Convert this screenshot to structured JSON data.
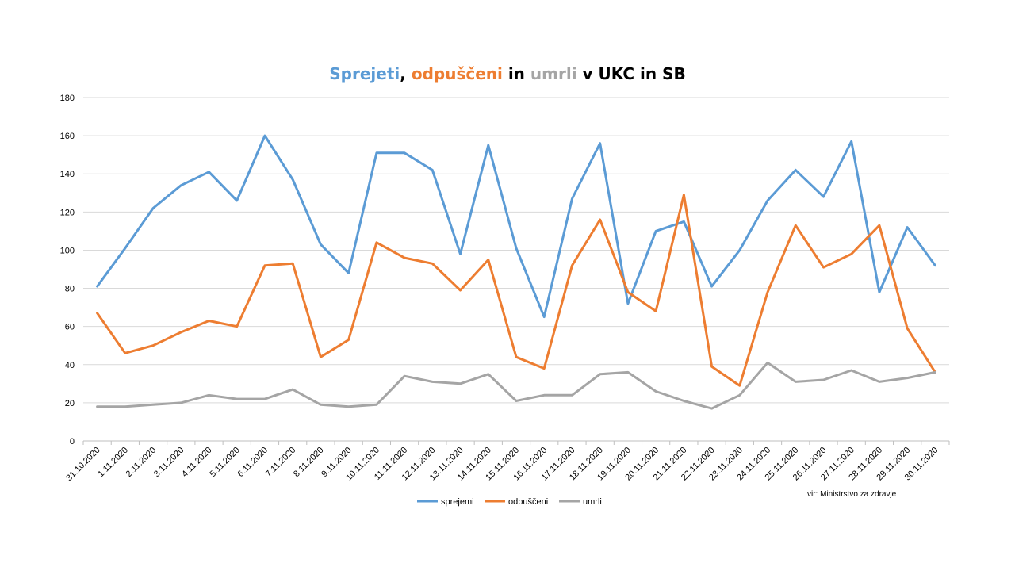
{
  "chart_data": {
    "type": "line",
    "title_parts": [
      {
        "text": "Sprejeti",
        "color": "#5b9bd5"
      },
      {
        "text": ", ",
        "color": "#000000"
      },
      {
        "text": "odpuščeni",
        "color": "#ed7d31"
      },
      {
        "text": " in ",
        "color": "#000000"
      },
      {
        "text": "umrli",
        "color": "#a5a5a5"
      },
      {
        "text": " v UKC in SB",
        "color": "#000000"
      }
    ],
    "x": [
      "31.10.2020",
      "1.11.2020",
      "2.11.2020",
      "3.11.2020",
      "4.11.2020",
      "5.11.2020",
      "6.11.2020",
      "7.11.2020",
      "8.11.2020",
      "9.11.2020",
      "10.11.2020",
      "11.11.2020",
      "12.11.2020",
      "13.11.2020",
      "14.11.2020",
      "15.11.2020",
      "16.11.2020",
      "17.11.2020",
      "18.11.2020",
      "19.11.2020",
      "20.11.2020",
      "21.11.2020",
      "22.11.2020",
      "23.11.2020",
      "24.11.2020",
      "25.11.2020",
      "26.11.2020",
      "27.11.2020",
      "28.11.2020",
      "29.11.2020",
      "30.11.2020"
    ],
    "series": [
      {
        "name": "sprejemi",
        "color": "#5b9bd5",
        "values": [
          81,
          101,
          122,
          134,
          141,
          126,
          160,
          137,
          103,
          88,
          151,
          151,
          142,
          98,
          155,
          101,
          65,
          127,
          156,
          72,
          110,
          115,
          81,
          100,
          126,
          142,
          128,
          157,
          78,
          112,
          92
        ]
      },
      {
        "name": "odpuščeni",
        "color": "#ed7d31",
        "values": [
          67,
          46,
          50,
          57,
          63,
          60,
          92,
          93,
          44,
          53,
          104,
          96,
          93,
          79,
          95,
          44,
          38,
          92,
          116,
          78,
          68,
          129,
          39,
          29,
          78,
          113,
          91,
          98,
          113,
          59,
          36
        ]
      },
      {
        "name": "umrli",
        "color": "#a5a5a5",
        "values": [
          18,
          18,
          19,
          20,
          24,
          22,
          22,
          27,
          19,
          18,
          19,
          34,
          31,
          30,
          35,
          21,
          24,
          24,
          35,
          36,
          26,
          21,
          17,
          24,
          41,
          31,
          32,
          37,
          31,
          33,
          36
        ]
      }
    ],
    "ylim": [
      0,
      180
    ],
    "yticks": [
      0,
      20,
      40,
      60,
      80,
      100,
      120,
      140,
      160,
      180
    ],
    "grid": true,
    "legend_position": "bottom-center",
    "source_note": "vir: Ministrstvo za zdravje"
  }
}
